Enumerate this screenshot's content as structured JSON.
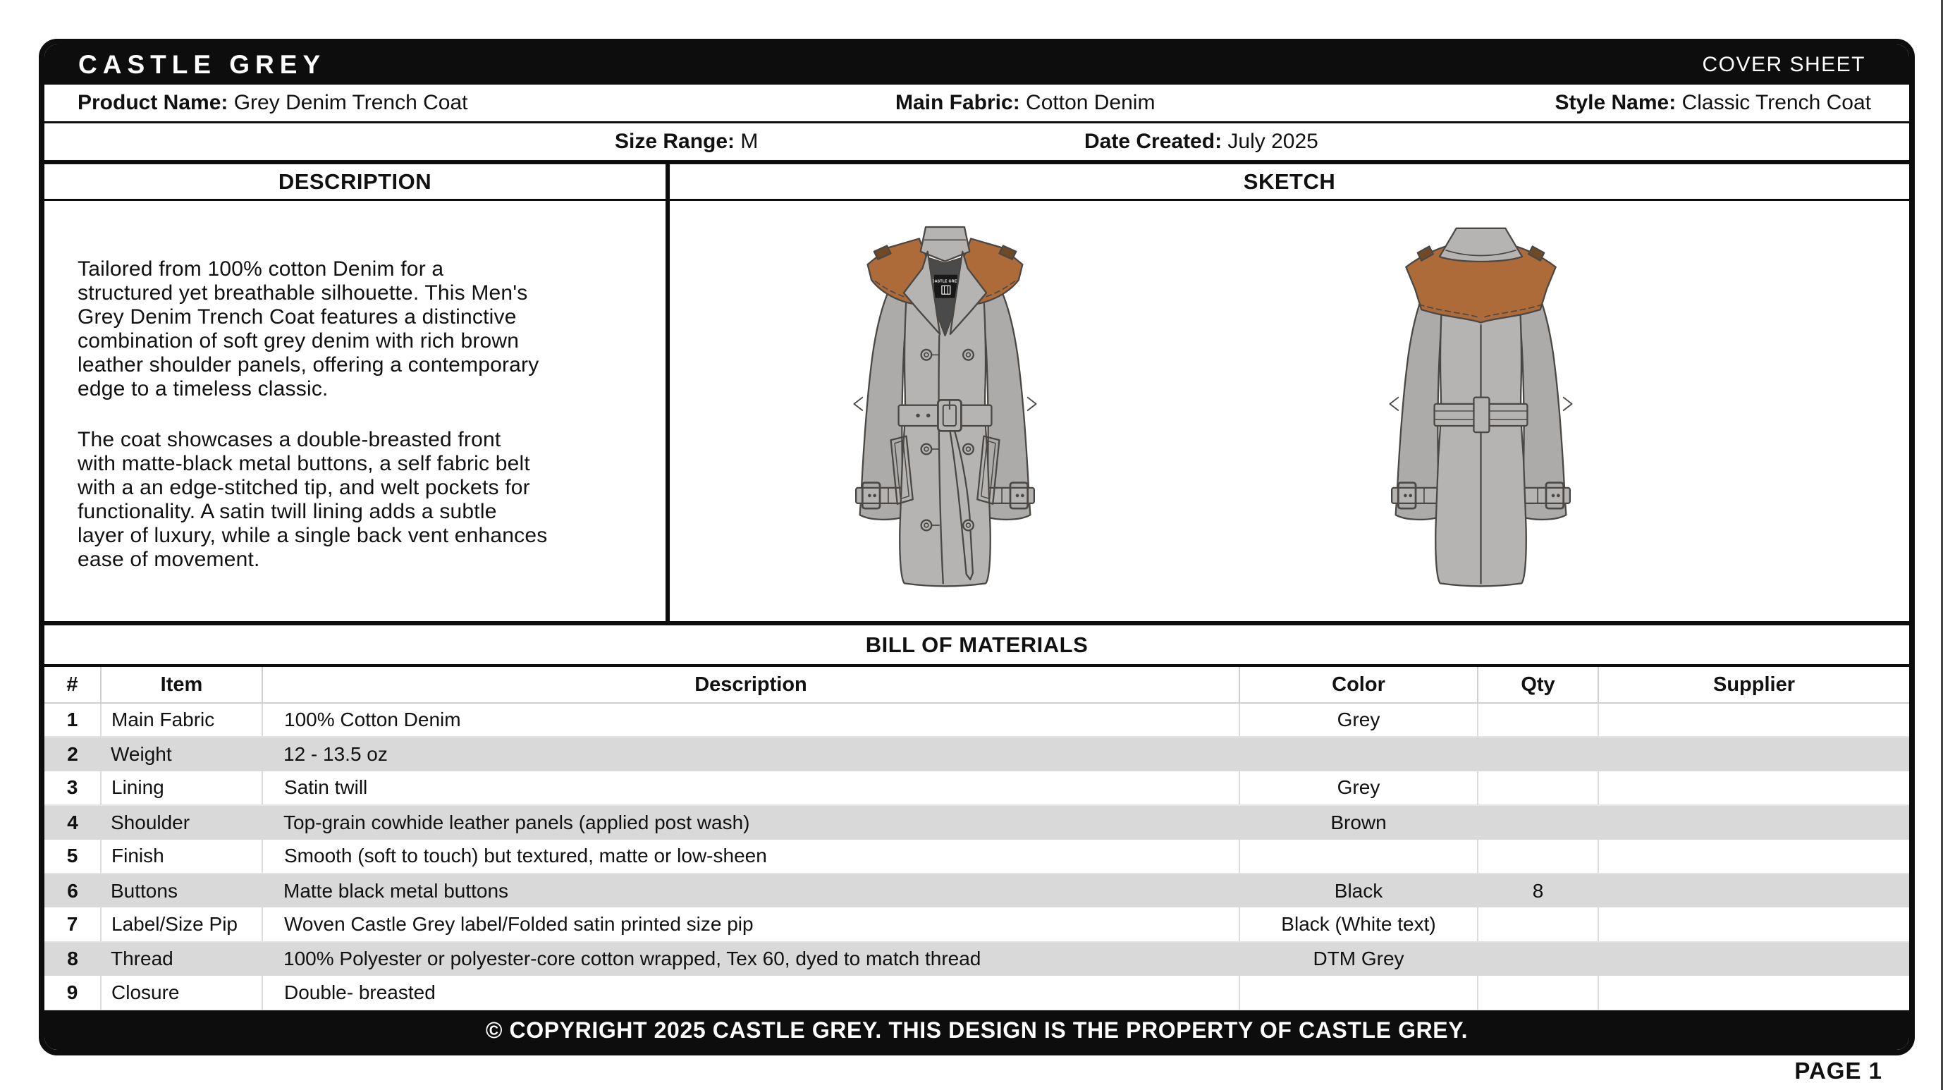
{
  "header": {
    "brand": "CASTLE GREY",
    "sheet_label": "COVER SHEET"
  },
  "info": {
    "product_name_label": "Product Name:",
    "product_name": "Grey Denim Trench Coat",
    "main_fabric_label": "Main Fabric:",
    "main_fabric": "Cotton Denim",
    "style_name_label": "Style Name:",
    "style_name": "Classic Trench Coat",
    "size_range_label": "Size Range:",
    "size_range": "M",
    "date_created_label": "Date Created:",
    "date_created": "July 2025"
  },
  "description": {
    "title": "DESCRIPTION",
    "paragraphs": [
      "Tailored from 100% cotton Denim for a\nstructured yet breathable silhouette. This Men's\nGrey Denim Trench Coat features a distinctive\ncombination of soft grey denim with rich brown\nleather shoulder panels, offering a contemporary\nedge to a timeless classic.",
      "The coat showcases a double-breasted front\nwith matte-black metal buttons, a self fabric belt\nwith a an edge-stitched tip, and welt pockets for\nfunctionality. A satin twill lining adds a subtle\nlayer of luxury, while a single back vent enhances\nease of movement."
    ]
  },
  "sketch": {
    "title": "SKETCH",
    "coat_label_text": "CASTLE GREY",
    "colors": {
      "coat_grey": "#b5b4b3",
      "coat_grey_dark": "#acabaa",
      "coat_outline": "#4a4744",
      "coat_brown": "#ad6b3a",
      "coat_lining": "#4a4a4a",
      "coat_tab_brown": "#6e4a26",
      "coat_label_bg": "#181818"
    }
  },
  "bom": {
    "title": "BILL OF MATERIALS",
    "columns": [
      "#",
      "Item",
      "Description",
      "Color",
      "Qty",
      "Supplier"
    ],
    "shaded_row_color": "#d9d9d9",
    "rows": [
      {
        "num": "1",
        "item": "Main Fabric",
        "description": "100% Cotton Denim",
        "color": "Grey",
        "qty": "",
        "supplier": ""
      },
      {
        "num": "2",
        "item": "Weight",
        "description": "12 - 13.5 oz",
        "color": "",
        "qty": "",
        "supplier": ""
      },
      {
        "num": "3",
        "item": "Lining",
        "description": "Satin twill",
        "color": "Grey",
        "qty": "",
        "supplier": ""
      },
      {
        "num": "4",
        "item": "Shoulder",
        "description": "Top-grain cowhide leather panels (applied post wash)",
        "color": "Brown",
        "qty": "",
        "supplier": ""
      },
      {
        "num": "5",
        "item": "Finish",
        "description": "Smooth (soft to touch) but textured, matte or low-sheen",
        "color": "",
        "qty": "",
        "supplier": ""
      },
      {
        "num": "6",
        "item": "Buttons",
        "description": "Matte black metal buttons",
        "color": "Black",
        "qty": "8",
        "supplier": ""
      },
      {
        "num": "7",
        "item": "Label/Size Pip",
        "description": "Woven Castle Grey label/Folded satin printed size pip",
        "color": "Black (White text)",
        "qty": "",
        "supplier": ""
      },
      {
        "num": "8",
        "item": "Thread",
        "description": "100% Polyester or polyester-core cotton wrapped, Tex 60, dyed to match thread",
        "color": "DTM Grey",
        "qty": "",
        "supplier": ""
      },
      {
        "num": "9",
        "item": "Closure",
        "description": "Double- breasted",
        "color": "",
        "qty": "",
        "supplier": ""
      }
    ]
  },
  "footer": {
    "copyright": "© COPYRIGHT 2025 CASTLE GREY. THIS DESIGN IS THE PROPERTY OF CASTLE GREY.",
    "page_label": "PAGE 1"
  }
}
